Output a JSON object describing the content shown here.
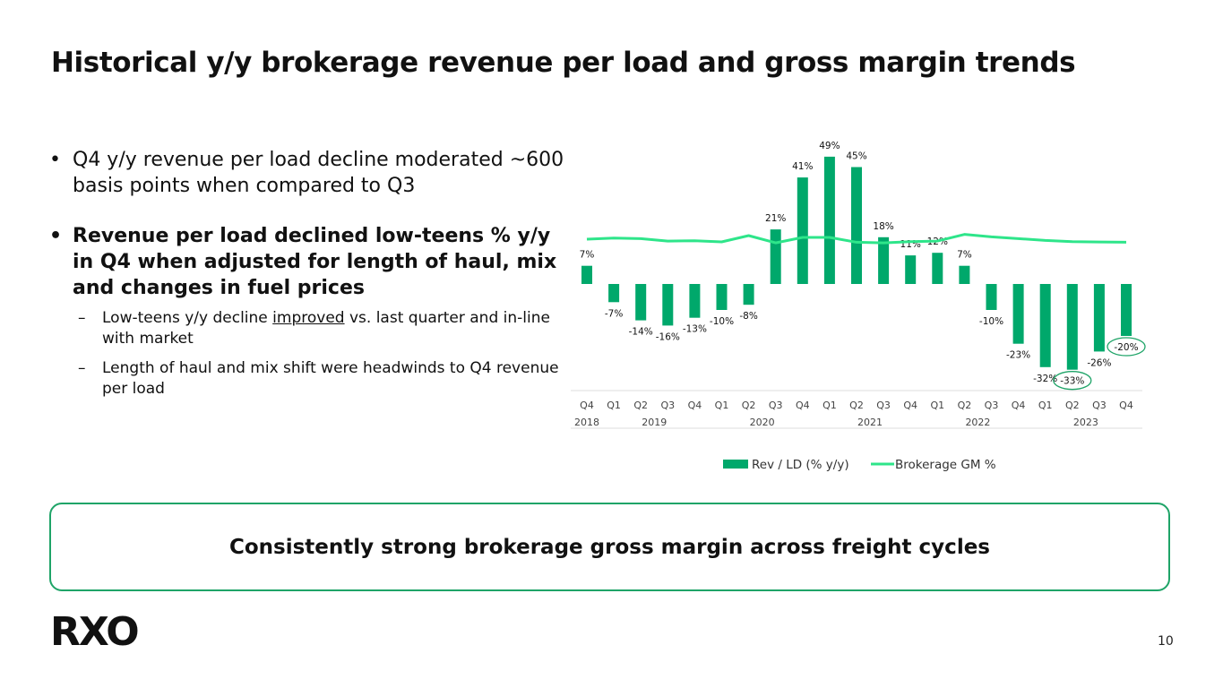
{
  "slide": {
    "title": "Historical y/y brokerage revenue per load and gross margin trends",
    "bullet_dot": "•",
    "sub_dash": "–",
    "bullet1": "Q4 y/y revenue per load decline moderated ~600 basis points when compared to Q3",
    "bullet2": "Revenue per load declined low-teens % y/y in Q4 when adjusted for length of haul, mix and changes in fuel prices",
    "sub1_before": "Low-teens y/y decline ",
    "sub1_underlined": "improved",
    "sub1_after": " vs. last quarter and in-line with market",
    "sub2": "Length of haul and mix shift were headwinds to Q4 revenue per load",
    "callout": "Consistently strong brokerage gross margin across freight cycles",
    "logo_text": "RXO",
    "page_number": "10"
  },
  "colors": {
    "bar": "#00a86b",
    "line": "#2ee58a",
    "highlight": "#1fa468",
    "text": "#111111",
    "axis_text": "#444444"
  },
  "chart_data": {
    "type": "bar",
    "categories": [
      "Q4",
      "Q1",
      "Q2",
      "Q3",
      "Q4",
      "Q1",
      "Q2",
      "Q3",
      "Q4",
      "Q1",
      "Q2",
      "Q3",
      "Q4",
      "Q1",
      "Q2",
      "Q3",
      "Q4",
      "Q1",
      "Q2",
      "Q3",
      "Q4"
    ],
    "year_groups": [
      {
        "label": "2018",
        "start": 0,
        "end": 0
      },
      {
        "label": "2019",
        "start": 1,
        "end": 4
      },
      {
        "label": "2020",
        "start": 5,
        "end": 8
      },
      {
        "label": "2021",
        "start": 9,
        "end": 12
      },
      {
        "label": "2022",
        "start": 13,
        "end": 16
      },
      {
        "label": "2023",
        "start": 17,
        "end": 20
      }
    ],
    "series": [
      {
        "name": "Rev / LD (% y/y)",
        "type": "bar",
        "values": [
          7,
          -7,
          -14,
          -16,
          -13,
          -10,
          -8,
          21,
          41,
          49,
          45,
          18,
          11,
          12,
          7,
          -10,
          -23,
          -32,
          -33,
          -26,
          -20
        ],
        "labels": [
          "7%",
          "-7%",
          "-14%",
          "-16%",
          "-13%",
          "-10%",
          "-8%",
          "21%",
          "41%",
          "49%",
          "45%",
          "18%",
          "11%",
          "12%",
          "7%",
          "-10%",
          "-23%",
          "-32%",
          "-33%",
          "-26%",
          "-20%"
        ]
      },
      {
        "name": "Brokerage GM %",
        "type": "line",
        "values": [
          17,
          18,
          17.5,
          15.5,
          15.7,
          14.8,
          20,
          14,
          18.5,
          18.5,
          14.5,
          14,
          15,
          15.5,
          21,
          19,
          17.5,
          16,
          15,
          14.7,
          14.5
        ]
      }
    ],
    "highlighted_labels": [
      "-33%",
      "-20%"
    ],
    "legend_position": "bottom-center",
    "grid": false
  }
}
